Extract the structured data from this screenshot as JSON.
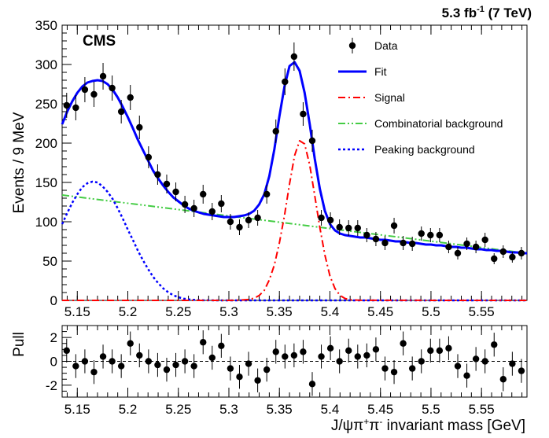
{
  "chart_data": [
    {
      "type": "scatter",
      "xlabel": "",
      "ylabel": "Events / 9 MeV",
      "xlim": [
        5.135,
        5.595
      ],
      "ylim": [
        0,
        350
      ],
      "x_ticks": [
        5.15,
        5.2,
        5.25,
        5.3,
        5.35,
        5.4,
        5.45,
        5.5,
        5.55
      ],
      "x_tick_labels": [
        "5.15",
        "5.2",
        "5.25",
        "5.3",
        "5.35",
        "5.4",
        "5.45",
        "5.5",
        "5.55"
      ],
      "y_ticks": [
        0,
        50,
        100,
        150,
        200,
        250,
        300,
        350
      ],
      "y_tick_labels": [
        "0",
        "50",
        "100",
        "150",
        "200",
        "250",
        "300",
        "350"
      ],
      "legend_position": "top-right",
      "annotations": {
        "experiment": "CMS",
        "lumi_value": "5.3 fb",
        "lumi_exp": "-1",
        "lumi_energy": " (7 TeV)"
      },
      "data_points": {
        "name": "Data",
        "x": [
          5.1395,
          5.1485,
          5.1575,
          5.1665,
          5.1755,
          5.1845,
          5.1935,
          5.2025,
          5.2115,
          5.2205,
          5.2295,
          5.2385,
          5.2475,
          5.2565,
          5.2655,
          5.2745,
          5.2835,
          5.2925,
          5.3015,
          5.3105,
          5.3195,
          5.3285,
          5.3375,
          5.3465,
          5.3555,
          5.3645,
          5.3735,
          5.3825,
          5.3915,
          5.4005,
          5.4095,
          5.4185,
          5.4275,
          5.4365,
          5.4455,
          5.4545,
          5.4635,
          5.4725,
          5.4815,
          5.4905,
          5.4995,
          5.5085,
          5.5175,
          5.5265,
          5.5355,
          5.5445,
          5.5535,
          5.5625,
          5.5715,
          5.5805,
          5.5895
        ],
        "y": [
          248,
          245,
          268,
          262,
          285,
          270,
          240,
          258,
          220,
          182,
          160,
          148,
          138,
          122,
          117,
          135,
          113,
          123,
          100,
          93,
          102,
          105,
          135,
          215,
          278,
          310,
          237,
          203,
          105,
          102,
          93,
          92,
          92,
          83,
          78,
          73,
          95,
          73,
          72,
          85,
          83,
          83,
          68,
          60,
          72,
          68,
          77,
          53,
          62,
          55,
          60
        ],
        "yerr": [
          16,
          16,
          16,
          16,
          17,
          16,
          15,
          16,
          15,
          14,
          13,
          12,
          12,
          11,
          11,
          12,
          11,
          11,
          10,
          10,
          10,
          10,
          12,
          15,
          17,
          18,
          15,
          14,
          10,
          10,
          10,
          10,
          10,
          9,
          9,
          9,
          10,
          9,
          9,
          9,
          9,
          9,
          8,
          8,
          8,
          8,
          9,
          7,
          8,
          7,
          8
        ]
      },
      "series": [
        {
          "name": "Fit",
          "color": "#0000ff",
          "style": "solid",
          "x": [
            5.135,
            5.14,
            5.145,
            5.15,
            5.155,
            5.16,
            5.165,
            5.17,
            5.175,
            5.18,
            5.185,
            5.19,
            5.195,
            5.2,
            5.205,
            5.21,
            5.215,
            5.22,
            5.225,
            5.23,
            5.235,
            5.24,
            5.245,
            5.25,
            5.255,
            5.26,
            5.265,
            5.27,
            5.275,
            5.28,
            5.285,
            5.29,
            5.295,
            5.3,
            5.305,
            5.31,
            5.315,
            5.32,
            5.325,
            5.33,
            5.335,
            5.34,
            5.345,
            5.35,
            5.355,
            5.36,
            5.365,
            5.37,
            5.375,
            5.38,
            5.385,
            5.39,
            5.395,
            5.4,
            5.405,
            5.41,
            5.415,
            5.42,
            5.425,
            5.43,
            5.435,
            5.44,
            5.445,
            5.45,
            5.455,
            5.46,
            5.465,
            5.47,
            5.475,
            5.48,
            5.485,
            5.49,
            5.495,
            5.5,
            5.505,
            5.51,
            5.515,
            5.52,
            5.525,
            5.53,
            5.535,
            5.54,
            5.545,
            5.55,
            5.555,
            5.56,
            5.565,
            5.57,
            5.575,
            5.58,
            5.585,
            5.59,
            5.595
          ],
          "y": [
            224,
            240,
            253,
            264,
            272,
            277,
            279,
            280,
            279,
            275,
            268,
            258,
            246,
            233,
            219,
            204,
            191,
            178,
            165,
            155,
            146,
            138,
            131,
            126,
            121,
            117,
            114,
            112,
            110,
            109,
            108,
            107,
            106,
            106,
            106,
            107,
            108,
            110,
            114,
            122,
            135,
            158,
            192,
            234,
            272,
            298,
            303,
            292,
            264,
            224,
            180,
            142,
            114,
            97,
            89,
            85,
            83,
            82,
            81,
            80,
            80,
            79,
            78,
            77,
            77,
            76,
            75,
            75,
            74,
            73,
            73,
            72,
            71,
            71,
            70,
            70,
            69,
            68,
            68,
            67,
            67,
            66,
            65,
            65,
            64,
            64,
            63,
            63,
            62,
            61,
            61,
            60,
            60
          ]
        },
        {
          "name": "Signal",
          "color": "#ff0000",
          "style": "dashdot",
          "x": [
            5.135,
            5.3,
            5.31,
            5.32,
            5.325,
            5.33,
            5.335,
            5.34,
            5.345,
            5.35,
            5.355,
            5.36,
            5.365,
            5.37,
            5.375,
            5.38,
            5.385,
            5.39,
            5.395,
            5.4,
            5.405,
            5.41,
            5.415,
            5.42,
            5.43,
            5.595
          ],
          "y": [
            0,
            0,
            0.3,
            1.2,
            2.8,
            6.2,
            12.7,
            26,
            45,
            73,
            108,
            148,
            184,
            203,
            199,
            172,
            133,
            93,
            58,
            31,
            15,
            6.3,
            2.4,
            0.8,
            0.1,
            0
          ]
        },
        {
          "name": "Combinatorial background",
          "color": "#44cc44",
          "style": "dashdotdot",
          "x": [
            5.135,
            5.595
          ],
          "y": [
            134,
            60
          ]
        },
        {
          "name": "Peaking background",
          "color": "#0000ff",
          "style": "dotted",
          "x": [
            5.135,
            5.14,
            5.145,
            5.15,
            5.155,
            5.16,
            5.165,
            5.17,
            5.175,
            5.18,
            5.185,
            5.19,
            5.195,
            5.2,
            5.205,
            5.21,
            5.215,
            5.22,
            5.225,
            5.23,
            5.235,
            5.24,
            5.245,
            5.25,
            5.255,
            5.26,
            5.265,
            5.27,
            5.275,
            5.28,
            5.29,
            5.3,
            5.595
          ],
          "y": [
            97,
            111,
            124,
            135,
            144,
            149,
            151,
            150,
            145,
            138,
            129,
            117,
            104,
            90,
            77,
            63,
            51,
            40,
            30,
            22,
            15.3,
            10.3,
            6.5,
            4,
            2.3,
            1.3,
            0.7,
            0.3,
            0.15,
            0.07,
            0.01,
            0,
            0
          ]
        }
      ]
    },
    {
      "type": "scatter",
      "xlabel": "J/ψπ⁺π⁻ invariant mass [GeV]",
      "ylabel": "Pull",
      "xlim": [
        5.135,
        5.595
      ],
      "ylim": [
        -3,
        3
      ],
      "x_ticks": [
        5.15,
        5.2,
        5.25,
        5.3,
        5.35,
        5.4,
        5.45,
        5.5,
        5.55
      ],
      "x_tick_labels": [
        "5.15",
        "5.2",
        "5.25",
        "5.3",
        "5.35",
        "5.4",
        "5.45",
        "5.5",
        "5.55"
      ],
      "y_ticks": [
        -2,
        0,
        2
      ],
      "y_tick_labels": [
        "-2",
        "0",
        "2"
      ],
      "reference_line": 0,
      "data_points": {
        "x": [
          5.1395,
          5.1485,
          5.1575,
          5.1665,
          5.1755,
          5.1845,
          5.1935,
          5.2025,
          5.2115,
          5.2205,
          5.2295,
          5.2385,
          5.2475,
          5.2565,
          5.2655,
          5.2745,
          5.2835,
          5.2925,
          5.3015,
          5.3105,
          5.3195,
          5.3285,
          5.3375,
          5.3465,
          5.3555,
          5.3645,
          5.3735,
          5.3825,
          5.3915,
          5.4005,
          5.4095,
          5.4185,
          5.4275,
          5.4365,
          5.4455,
          5.4545,
          5.4635,
          5.4725,
          5.4815,
          5.4905,
          5.4995,
          5.5085,
          5.5175,
          5.5265,
          5.5355,
          5.5445,
          5.5535,
          5.5625,
          5.5715,
          5.5805,
          5.5895
        ],
        "y": [
          0.9,
          -0.4,
          0.0,
          -0.9,
          0.4,
          0.0,
          -0.4,
          1.5,
          0.5,
          0.0,
          -0.3,
          -0.7,
          -0.3,
          0.0,
          -0.4,
          1.6,
          0.3,
          1.3,
          -0.6,
          -1.3,
          -0.2,
          -1.6,
          -0.7,
          0.8,
          0.4,
          0.5,
          0.8,
          -1.9,
          0.4,
          1.1,
          0.0,
          0.9,
          0.4,
          0.5,
          1.0,
          -0.6,
          -0.9,
          1.5,
          -0.6,
          0.0,
          0.9,
          0.9,
          1.1,
          -0.4,
          -1.2,
          0.2,
          0.0,
          1.4,
          -1.5,
          -0.2,
          -0.8
        ],
        "yerr": [
          1,
          1,
          1,
          1,
          1,
          1,
          1,
          1,
          1,
          1,
          1,
          1,
          1,
          1,
          1,
          1,
          1,
          1,
          1,
          1,
          1,
          1,
          1,
          1,
          1,
          1,
          1,
          1,
          1,
          1,
          1,
          1,
          1,
          1,
          1,
          1,
          1,
          1,
          1,
          1,
          1,
          1,
          1,
          1,
          1,
          1,
          1,
          1,
          1,
          1,
          1
        ]
      }
    }
  ],
  "axis_texts": {
    "main_ylabel": "Events / 9 MeV",
    "pull_ylabel": "Pull",
    "xlabel_prefix": "J/ψπ",
    "xlabel_sup1": "+",
    "xlabel_mid": "π",
    "xlabel_sup2": "-",
    "xlabel_suffix": " invariant mass [GeV]"
  },
  "legend": [
    {
      "label": "Data",
      "marker": "point",
      "color": "#000000"
    },
    {
      "label": "Fit",
      "marker": "line",
      "style": "solid",
      "color": "#0000ff"
    },
    {
      "label": "Signal",
      "marker": "line",
      "style": "dashdot",
      "color": "#ff0000"
    },
    {
      "label": "Combinatorial background",
      "marker": "line",
      "style": "dashdotdot",
      "color": "#44cc44"
    },
    {
      "label": "Peaking background",
      "marker": "line",
      "style": "dotted",
      "color": "#0000ff"
    }
  ]
}
